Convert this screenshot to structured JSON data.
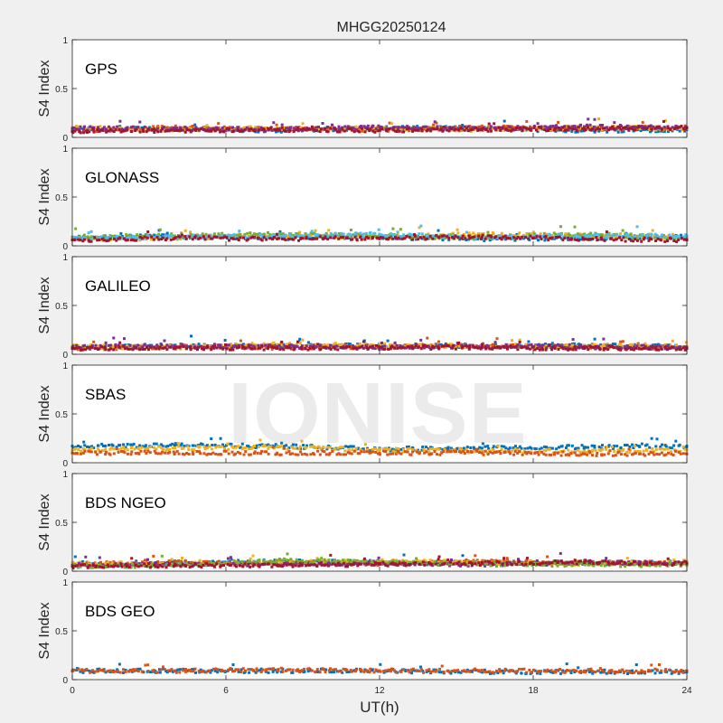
{
  "figure": {
    "title": "MHGG20250124",
    "watermark": "IONISE"
  },
  "chart_data": {
    "type": "scatter",
    "xlabel": "UT(h)",
    "ylabel": "S4 Index",
    "xlim": [
      0,
      24
    ],
    "ylim": [
      0,
      1
    ],
    "xticks": [
      0,
      6,
      12,
      18,
      24
    ],
    "yticks": [
      0,
      0.5,
      1
    ],
    "ytick_labels": [
      "0",
      "0.5",
      "1"
    ],
    "colors": [
      "#0072BD",
      "#D95319",
      "#EDB120",
      "#7E2F8E",
      "#77AC30",
      "#4DBEEE",
      "#A2142F"
    ],
    "panels": [
      {
        "label": "GPS",
        "series": [
          {
            "color": "#0072BD",
            "x": [
              0,
              4,
              8,
              12,
              16,
              20,
              24
            ],
            "y": [
              0.08,
              0.09,
              0.07,
              0.1,
              0.09,
              0.07,
              0.08
            ]
          },
          {
            "color": "#D95319",
            "x": [
              0,
              4,
              8,
              12,
              16,
              20,
              24
            ],
            "y": [
              0.07,
              0.1,
              0.09,
              0.08,
              0.1,
              0.09,
              0.1
            ]
          },
          {
            "color": "#EDB120",
            "x": [
              0,
              4,
              8,
              12,
              16,
              20,
              24
            ],
            "y": [
              0.1,
              0.08,
              0.09,
              0.09,
              0.08,
              0.1,
              0.09
            ]
          },
          {
            "color": "#7E2F8E",
            "x": [
              0,
              4,
              8,
              12,
              16,
              20,
              24
            ],
            "y": [
              0.09,
              0.09,
              0.08,
              0.1,
              0.09,
              0.11,
              0.1
            ]
          },
          {
            "color": "#A2142F",
            "x": [
              0,
              4,
              8,
              12,
              16,
              20,
              24
            ],
            "y": [
              0.06,
              0.07,
              0.08,
              0.07,
              0.08,
              0.09,
              0.1
            ]
          }
        ]
      },
      {
        "label": "GLONASS",
        "series": [
          {
            "color": "#0072BD",
            "x": [
              0,
              4,
              8,
              12,
              16,
              20,
              24
            ],
            "y": [
              0.08,
              0.1,
              0.08,
              0.09,
              0.07,
              0.08,
              0.09
            ]
          },
          {
            "color": "#EDB120",
            "x": [
              0,
              4,
              8,
              12,
              16,
              20,
              24
            ],
            "y": [
              0.07,
              0.08,
              0.1,
              0.09,
              0.12,
              0.1,
              0.08
            ]
          },
          {
            "color": "#77AC30",
            "x": [
              0,
              4,
              8,
              12,
              16,
              20,
              24
            ],
            "y": [
              0.09,
              0.1,
              0.12,
              0.1,
              0.09,
              0.12,
              0.08
            ]
          },
          {
            "color": "#4DBEEE",
            "x": [
              0,
              4,
              8,
              12,
              16,
              20,
              24
            ],
            "y": [
              0.07,
              0.09,
              0.1,
              0.12,
              0.09,
              0.1,
              0.1
            ]
          },
          {
            "color": "#A2142F",
            "x": [
              0,
              4,
              8,
              12,
              16,
              20,
              24
            ],
            "y": [
              0.06,
              0.08,
              0.07,
              0.08,
              0.09,
              0.07,
              0.06
            ]
          }
        ]
      },
      {
        "label": "GALILEO",
        "series": [
          {
            "color": "#0072BD",
            "x": [
              0,
              4,
              8,
              12,
              16,
              20,
              24
            ],
            "y": [
              0.07,
              0.09,
              0.08,
              0.09,
              0.08,
              0.09,
              0.08
            ]
          },
          {
            "color": "#D95319",
            "x": [
              0,
              4,
              8,
              12,
              16,
              20,
              24
            ],
            "y": [
              0.06,
              0.08,
              0.07,
              0.08,
              0.09,
              0.07,
              0.07
            ]
          },
          {
            "color": "#EDB120",
            "x": [
              0,
              4,
              8,
              12,
              16,
              20,
              24
            ],
            "y": [
              0.08,
              0.07,
              0.1,
              0.09,
              0.08,
              0.09,
              0.08
            ]
          },
          {
            "color": "#7E2F8E",
            "x": [
              0,
              4,
              8,
              12,
              16,
              20,
              24
            ],
            "y": [
              0.07,
              0.08,
              0.08,
              0.07,
              0.08,
              0.08,
              0.07
            ]
          },
          {
            "color": "#A2142F",
            "x": [
              0,
              4,
              8,
              12,
              16,
              20,
              24
            ],
            "y": [
              0.06,
              0.07,
              0.06,
              0.07,
              0.07,
              0.06,
              0.06
            ]
          }
        ]
      },
      {
        "label": "SBAS",
        "series": [
          {
            "color": "#0072BD",
            "x": [
              0,
              4,
              8,
              12,
              16,
              20,
              24
            ],
            "y": [
              0.17,
              0.18,
              0.17,
              0.14,
              0.15,
              0.16,
              0.17
            ]
          },
          {
            "color": "#EDB120",
            "x": [
              0,
              4,
              8,
              12,
              16,
              20,
              24
            ],
            "y": [
              0.13,
              0.15,
              0.16,
              0.13,
              0.12,
              0.12,
              0.13
            ]
          },
          {
            "color": "#D95319",
            "x": [
              0,
              4,
              8,
              12,
              16,
              20,
              24
            ],
            "y": [
              0.1,
              0.1,
              0.1,
              0.1,
              0.1,
              0.09,
              0.09
            ]
          }
        ]
      },
      {
        "label": "BDS NGEO",
        "series": [
          {
            "color": "#0072BD",
            "x": [
              0,
              4,
              8,
              12,
              16,
              20,
              24
            ],
            "y": [
              0.06,
              0.08,
              0.1,
              0.09,
              0.08,
              0.08,
              0.09
            ]
          },
          {
            "color": "#D95319",
            "x": [
              0,
              4,
              8,
              12,
              16,
              20,
              24
            ],
            "y": [
              0.07,
              0.09,
              0.08,
              0.08,
              0.1,
              0.09,
              0.08
            ]
          },
          {
            "color": "#EDB120",
            "x": [
              0,
              4,
              8,
              12,
              16,
              20,
              24
            ],
            "y": [
              0.08,
              0.07,
              0.09,
              0.1,
              0.09,
              0.08,
              0.1
            ]
          },
          {
            "color": "#7E2F8E",
            "x": [
              0,
              4,
              8,
              12,
              16,
              20,
              24
            ],
            "y": [
              0.06,
              0.07,
              0.07,
              0.08,
              0.07,
              0.09,
              0.08
            ]
          },
          {
            "color": "#77AC30",
            "x": [
              0,
              4,
              8,
              12,
              16,
              20,
              24
            ],
            "y": [
              0.05,
              0.06,
              0.11,
              0.09,
              0.07,
              0.07,
              0.06
            ]
          },
          {
            "color": "#A2142F",
            "x": [
              0,
              4,
              8,
              12,
              16,
              20,
              24
            ],
            "y": [
              0.05,
              0.06,
              0.06,
              0.07,
              0.08,
              0.09,
              0.08
            ]
          }
        ]
      },
      {
        "label": "BDS GEO",
        "series": [
          {
            "color": "#0072BD",
            "x": [
              0,
              4,
              8,
              12,
              16,
              20,
              24
            ],
            "y": [
              0.09,
              0.09,
              0.09,
              0.09,
              0.08,
              0.08,
              0.08
            ]
          },
          {
            "color": "#D95319",
            "x": [
              0,
              4,
              8,
              12,
              16,
              20,
              24
            ],
            "y": [
              0.09,
              0.09,
              0.1,
              0.09,
              0.09,
              0.09,
              0.09
            ]
          }
        ]
      }
    ]
  }
}
